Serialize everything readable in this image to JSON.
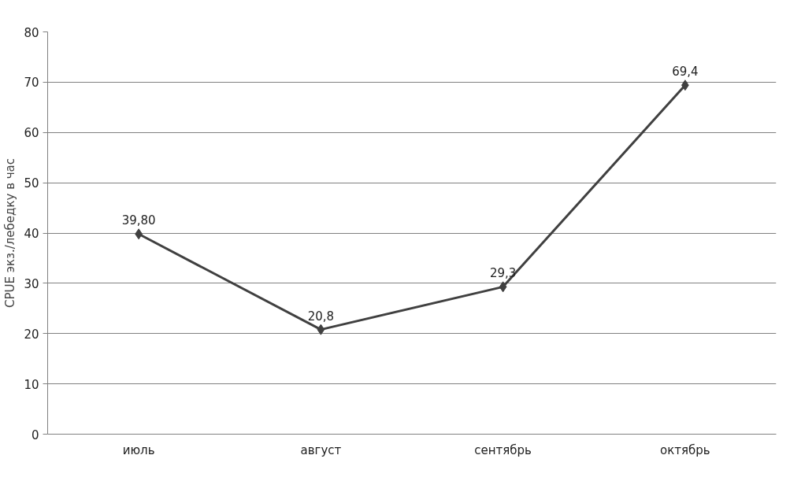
{
  "chart_data": {
    "type": "line",
    "ylabel": "CPUE экз./лебедку в час",
    "categories": [
      "июль",
      "август",
      "сентябрь",
      "октябрь"
    ],
    "series": [
      {
        "color": "#404040",
        "values": [
          39.8,
          20.8,
          29.3,
          69.4
        ],
        "value_labels": [
          "39,80",
          "20,8",
          "29,3",
          "69,4"
        ]
      }
    ],
    "ylim": [
      0,
      80
    ],
    "yticks": [
      0,
      10,
      20,
      30,
      40,
      50,
      60,
      70,
      80
    ],
    "grid": "y",
    "marker": "diamond",
    "line_style": "solid"
  }
}
